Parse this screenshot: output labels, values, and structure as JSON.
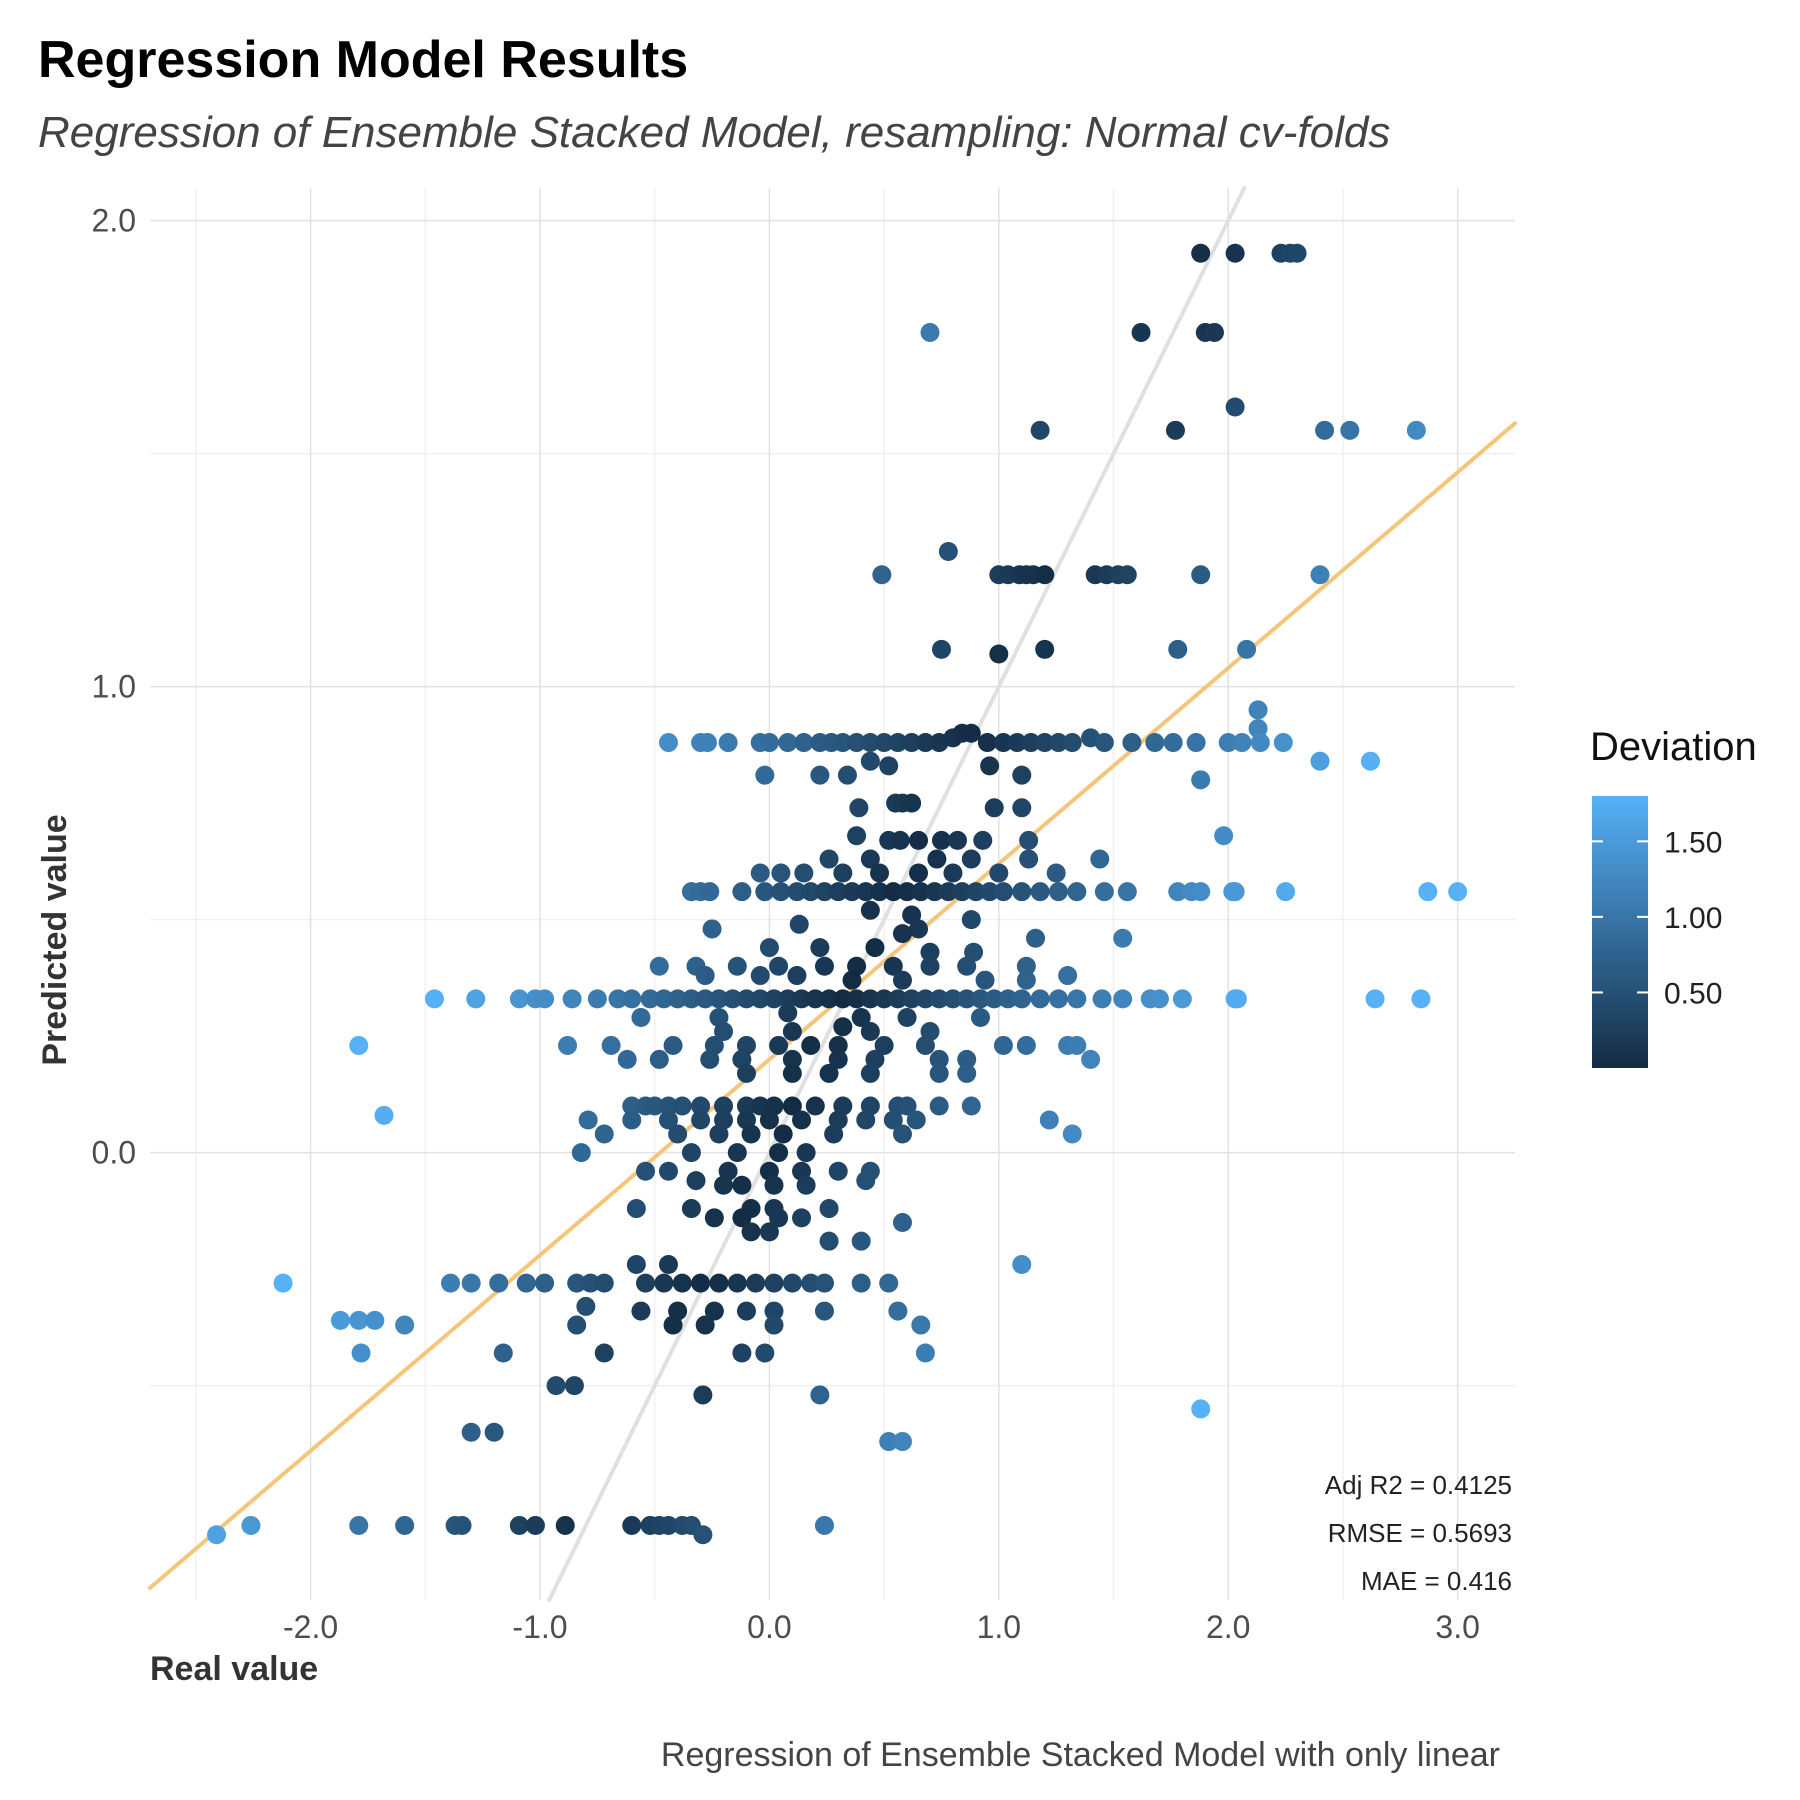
{
  "chart_data": {
    "type": "scatter",
    "title": "Regression Model Results",
    "subtitle": "Regression of Ensemble Stacked Model, resampling: Normal cv-folds",
    "caption": "Regression of Ensemble Stacked Model with only linear",
    "xlabel": "Real value",
    "ylabel": "Predicted value",
    "xlim": [
      -2.7,
      3.25
    ],
    "ylim": [
      -0.96,
      2.07
    ],
    "x_ticks": [
      -2.0,
      -1.0,
      0.0,
      1.0,
      2.0,
      3.0
    ],
    "x_tick_labels": [
      "-2.0",
      "-1.0",
      "0.0",
      "1.0",
      "2.0",
      "3.0"
    ],
    "y_ticks": [
      0.0,
      1.0,
      2.0
    ],
    "y_tick_labels": [
      "0.0",
      "1.0",
      "2.0"
    ],
    "grid": true,
    "legend": {
      "title": "Deviation",
      "position": "right",
      "range": [
        0.0,
        1.8
      ],
      "ticks": [
        0.5,
        1.0,
        1.5
      ],
      "tick_labels": [
        "0.50",
        "1.00",
        "1.50"
      ],
      "low_color": "#132B43",
      "high_color": "#56B1F7"
    },
    "identity_line": {
      "slope": 1,
      "intercept": 0,
      "color": "#e0e0e0"
    },
    "fit_line": {
      "slope": 0.42,
      "intercept": 0.2,
      "color": "#f5c57a"
    },
    "stats": [
      "Adj R2 =  0.4125",
      "RMSE = 0.5693",
      "MAE = 0.416"
    ],
    "points": [
      [
        1.88,
        1.93
      ],
      [
        2.03,
        1.93
      ],
      [
        2.23,
        1.93
      ],
      [
        2.27,
        1.93
      ],
      [
        2.3,
        1.93
      ],
      [
        0.7,
        1.76
      ],
      [
        1.62,
        1.76
      ],
      [
        1.9,
        1.76
      ],
      [
        1.94,
        1.76
      ],
      [
        2.03,
        1.6
      ],
      [
        1.18,
        1.55
      ],
      [
        1.77,
        1.55
      ],
      [
        2.42,
        1.55
      ],
      [
        2.53,
        1.55
      ],
      [
        2.82,
        1.55
      ],
      [
        0.78,
        1.29
      ],
      [
        0.49,
        1.24
      ],
      [
        1.0,
        1.24
      ],
      [
        1.04,
        1.24
      ],
      [
        1.09,
        1.24
      ],
      [
        1.12,
        1.24
      ],
      [
        1.15,
        1.24
      ],
      [
        1.2,
        1.24
      ],
      [
        1.42,
        1.24
      ],
      [
        1.47,
        1.24
      ],
      [
        1.52,
        1.24
      ],
      [
        1.56,
        1.24
      ],
      [
        1.88,
        1.24
      ],
      [
        2.4,
        1.24
      ],
      [
        0.75,
        1.08
      ],
      [
        1.0,
        1.07
      ],
      [
        1.2,
        1.08
      ],
      [
        1.78,
        1.08
      ],
      [
        2.08,
        1.08
      ],
      [
        2.13,
        0.95
      ],
      [
        2.13,
        0.91
      ],
      [
        -0.44,
        0.88
      ],
      [
        -0.3,
        0.88
      ],
      [
        -0.27,
        0.88
      ],
      [
        -0.18,
        0.88
      ],
      [
        -0.04,
        0.88
      ],
      [
        0.0,
        0.88
      ],
      [
        0.08,
        0.88
      ],
      [
        0.15,
        0.88
      ],
      [
        0.22,
        0.88
      ],
      [
        0.27,
        0.88
      ],
      [
        0.32,
        0.88
      ],
      [
        0.38,
        0.88
      ],
      [
        0.44,
        0.88
      ],
      [
        0.5,
        0.88
      ],
      [
        0.56,
        0.88
      ],
      [
        0.62,
        0.88
      ],
      [
        0.68,
        0.88
      ],
      [
        0.74,
        0.88
      ],
      [
        0.8,
        0.89
      ],
      [
        0.84,
        0.9
      ],
      [
        0.88,
        0.9
      ],
      [
        0.95,
        0.88
      ],
      [
        1.02,
        0.88
      ],
      [
        1.08,
        0.88
      ],
      [
        1.14,
        0.88
      ],
      [
        1.2,
        0.88
      ],
      [
        1.26,
        0.88
      ],
      [
        1.32,
        0.88
      ],
      [
        1.4,
        0.89
      ],
      [
        1.46,
        0.88
      ],
      [
        1.58,
        0.88
      ],
      [
        1.68,
        0.88
      ],
      [
        1.76,
        0.88
      ],
      [
        1.86,
        0.88
      ],
      [
        2.0,
        0.88
      ],
      [
        2.06,
        0.88
      ],
      [
        2.14,
        0.88
      ],
      [
        2.24,
        0.88
      ],
      [
        2.4,
        0.84
      ],
      [
        2.62,
        0.84
      ],
      [
        0.44,
        0.84
      ],
      [
        0.52,
        0.83
      ],
      [
        0.96,
        0.83
      ],
      [
        -0.02,
        0.81
      ],
      [
        0.22,
        0.81
      ],
      [
        0.34,
        0.81
      ],
      [
        1.1,
        0.81
      ],
      [
        1.88,
        0.8
      ],
      [
        0.55,
        0.75
      ],
      [
        0.58,
        0.75
      ],
      [
        0.62,
        0.75
      ],
      [
        0.39,
        0.74
      ],
      [
        0.98,
        0.74
      ],
      [
        1.1,
        0.74
      ],
      [
        0.38,
        0.68
      ],
      [
        0.52,
        0.67
      ],
      [
        0.57,
        0.67
      ],
      [
        0.65,
        0.67
      ],
      [
        0.75,
        0.67
      ],
      [
        0.82,
        0.67
      ],
      [
        0.93,
        0.67
      ],
      [
        1.13,
        0.67
      ],
      [
        1.98,
        0.68
      ],
      [
        0.26,
        0.63
      ],
      [
        0.44,
        0.63
      ],
      [
        0.73,
        0.63
      ],
      [
        0.88,
        0.63
      ],
      [
        1.13,
        0.63
      ],
      [
        1.44,
        0.63
      ],
      [
        -0.04,
        0.6
      ],
      [
        0.05,
        0.6
      ],
      [
        0.15,
        0.6
      ],
      [
        0.32,
        0.6
      ],
      [
        0.48,
        0.6
      ],
      [
        0.65,
        0.6
      ],
      [
        0.8,
        0.6
      ],
      [
        1.0,
        0.6
      ],
      [
        1.25,
        0.6
      ],
      [
        -0.34,
        0.56
      ],
      [
        -0.3,
        0.56
      ],
      [
        -0.26,
        0.56
      ],
      [
        -0.12,
        0.56
      ],
      [
        -0.02,
        0.56
      ],
      [
        0.05,
        0.56
      ],
      [
        0.12,
        0.56
      ],
      [
        0.18,
        0.56
      ],
      [
        0.24,
        0.56
      ],
      [
        0.3,
        0.56
      ],
      [
        0.36,
        0.56
      ],
      [
        0.42,
        0.56
      ],
      [
        0.48,
        0.56
      ],
      [
        0.54,
        0.56
      ],
      [
        0.6,
        0.56
      ],
      [
        0.66,
        0.56
      ],
      [
        0.72,
        0.56
      ],
      [
        0.78,
        0.56
      ],
      [
        0.84,
        0.56
      ],
      [
        0.9,
        0.56
      ],
      [
        0.96,
        0.56
      ],
      [
        1.02,
        0.56
      ],
      [
        1.1,
        0.56
      ],
      [
        1.18,
        0.56
      ],
      [
        1.26,
        0.56
      ],
      [
        1.34,
        0.56
      ],
      [
        1.46,
        0.56
      ],
      [
        1.56,
        0.56
      ],
      [
        1.78,
        0.56
      ],
      [
        1.84,
        0.56
      ],
      [
        1.88,
        0.56
      ],
      [
        2.02,
        0.56
      ],
      [
        2.03,
        0.56
      ],
      [
        2.25,
        0.56
      ],
      [
        2.87,
        0.56
      ],
      [
        3.0,
        0.56
      ],
      [
        0.44,
        0.52
      ],
      [
        0.62,
        0.51
      ],
      [
        0.88,
        0.5
      ],
      [
        -0.25,
        0.48
      ],
      [
        0.13,
        0.49
      ],
      [
        0.65,
        0.48
      ],
      [
        0.58,
        0.47
      ],
      [
        1.16,
        0.46
      ],
      [
        1.54,
        0.46
      ],
      [
        0.0,
        0.44
      ],
      [
        0.22,
        0.44
      ],
      [
        0.46,
        0.44
      ],
      [
        0.7,
        0.43
      ],
      [
        0.89,
        0.43
      ],
      [
        -0.48,
        0.4
      ],
      [
        -0.32,
        0.4
      ],
      [
        -0.14,
        0.4
      ],
      [
        0.04,
        0.4
      ],
      [
        0.24,
        0.4
      ],
      [
        0.38,
        0.4
      ],
      [
        0.54,
        0.4
      ],
      [
        0.7,
        0.4
      ],
      [
        0.86,
        0.4
      ],
      [
        1.12,
        0.4
      ],
      [
        -0.28,
        0.38
      ],
      [
        -0.04,
        0.38
      ],
      [
        0.12,
        0.38
      ],
      [
        0.36,
        0.37
      ],
      [
        0.58,
        0.37
      ],
      [
        0.94,
        0.37
      ],
      [
        1.12,
        0.37
      ],
      [
        1.3,
        0.38
      ],
      [
        -1.46,
        0.33
      ],
      [
        -1.28,
        0.33
      ],
      [
        -1.09,
        0.33
      ],
      [
        -1.02,
        0.33
      ],
      [
        -0.98,
        0.33
      ],
      [
        -0.86,
        0.33
      ],
      [
        -0.75,
        0.33
      ],
      [
        -0.66,
        0.33
      ],
      [
        -0.6,
        0.33
      ],
      [
        -0.52,
        0.33
      ],
      [
        -0.46,
        0.33
      ],
      [
        -0.4,
        0.33
      ],
      [
        -0.34,
        0.33
      ],
      [
        -0.28,
        0.33
      ],
      [
        -0.22,
        0.33
      ],
      [
        -0.16,
        0.33
      ],
      [
        -0.1,
        0.33
      ],
      [
        -0.04,
        0.33
      ],
      [
        0.02,
        0.33
      ],
      [
        0.08,
        0.33
      ],
      [
        0.14,
        0.33
      ],
      [
        0.2,
        0.33
      ],
      [
        0.26,
        0.33
      ],
      [
        0.32,
        0.33
      ],
      [
        0.38,
        0.33
      ],
      [
        0.44,
        0.33
      ],
      [
        0.5,
        0.33
      ],
      [
        0.56,
        0.33
      ],
      [
        0.62,
        0.33
      ],
      [
        0.68,
        0.33
      ],
      [
        0.74,
        0.33
      ],
      [
        0.8,
        0.33
      ],
      [
        0.86,
        0.33
      ],
      [
        0.92,
        0.33
      ],
      [
        0.98,
        0.33
      ],
      [
        1.04,
        0.33
      ],
      [
        1.1,
        0.33
      ],
      [
        1.18,
        0.33
      ],
      [
        1.26,
        0.33
      ],
      [
        1.34,
        0.33
      ],
      [
        1.45,
        0.33
      ],
      [
        1.54,
        0.33
      ],
      [
        1.66,
        0.33
      ],
      [
        1.7,
        0.33
      ],
      [
        1.8,
        0.33
      ],
      [
        2.03,
        0.33
      ],
      [
        2.04,
        0.33
      ],
      [
        2.64,
        0.33
      ],
      [
        2.84,
        0.33
      ],
      [
        -0.56,
        0.29
      ],
      [
        -0.22,
        0.29
      ],
      [
        0.08,
        0.3
      ],
      [
        0.4,
        0.29
      ],
      [
        0.6,
        0.29
      ],
      [
        0.92,
        0.29
      ],
      [
        -0.2,
        0.26
      ],
      [
        0.1,
        0.26
      ],
      [
        0.32,
        0.27
      ],
      [
        0.44,
        0.26
      ],
      [
        0.7,
        0.26
      ],
      [
        -1.79,
        0.23
      ],
      [
        -0.88,
        0.23
      ],
      [
        -0.69,
        0.23
      ],
      [
        -0.42,
        0.23
      ],
      [
        -0.24,
        0.23
      ],
      [
        -0.1,
        0.23
      ],
      [
        0.04,
        0.23
      ],
      [
        0.18,
        0.23
      ],
      [
        0.3,
        0.23
      ],
      [
        0.5,
        0.23
      ],
      [
        0.68,
        0.23
      ],
      [
        1.02,
        0.23
      ],
      [
        1.12,
        0.23
      ],
      [
        1.3,
        0.23
      ],
      [
        1.34,
        0.23
      ],
      [
        -0.62,
        0.2
      ],
      [
        -0.48,
        0.2
      ],
      [
        -0.26,
        0.2
      ],
      [
        -0.12,
        0.2
      ],
      [
        0.1,
        0.2
      ],
      [
        0.3,
        0.2
      ],
      [
        0.46,
        0.2
      ],
      [
        0.74,
        0.2
      ],
      [
        0.86,
        0.2
      ],
      [
        1.4,
        0.2
      ],
      [
        -0.1,
        0.17
      ],
      [
        0.1,
        0.17
      ],
      [
        0.26,
        0.17
      ],
      [
        0.44,
        0.17
      ],
      [
        0.74,
        0.17
      ],
      [
        0.86,
        0.17
      ],
      [
        -0.6,
        0.1
      ],
      [
        -0.54,
        0.1
      ],
      [
        -0.5,
        0.1
      ],
      [
        -0.44,
        0.1
      ],
      [
        -0.38,
        0.1
      ],
      [
        -0.3,
        0.1
      ],
      [
        -0.2,
        0.1
      ],
      [
        -0.1,
        0.1
      ],
      [
        -0.04,
        0.1
      ],
      [
        0.02,
        0.1
      ],
      [
        0.1,
        0.1
      ],
      [
        0.2,
        0.1
      ],
      [
        0.32,
        0.1
      ],
      [
        0.44,
        0.1
      ],
      [
        0.56,
        0.1
      ],
      [
        0.6,
        0.1
      ],
      [
        0.74,
        0.1
      ],
      [
        0.88,
        0.1
      ],
      [
        -1.68,
        0.08
      ],
      [
        -0.79,
        0.07
      ],
      [
        -0.6,
        0.07
      ],
      [
        -0.44,
        0.07
      ],
      [
        -0.3,
        0.07
      ],
      [
        -0.2,
        0.07
      ],
      [
        -0.1,
        0.07
      ],
      [
        0.0,
        0.07
      ],
      [
        0.14,
        0.07
      ],
      [
        0.3,
        0.07
      ],
      [
        0.42,
        0.07
      ],
      [
        0.54,
        0.07
      ],
      [
        0.64,
        0.07
      ],
      [
        1.22,
        0.07
      ],
      [
        -0.72,
        0.04
      ],
      [
        -0.4,
        0.04
      ],
      [
        -0.22,
        0.04
      ],
      [
        -0.08,
        0.04
      ],
      [
        0.06,
        0.04
      ],
      [
        0.28,
        0.04
      ],
      [
        0.58,
        0.04
      ],
      [
        1.32,
        0.04
      ],
      [
        -0.82,
        0.0
      ],
      [
        -0.34,
        0.0
      ],
      [
        -0.14,
        0.0
      ],
      [
        0.04,
        0.0
      ],
      [
        0.16,
        0.0
      ],
      [
        -0.54,
        -0.04
      ],
      [
        -0.44,
        -0.04
      ],
      [
        -0.18,
        -0.04
      ],
      [
        0.0,
        -0.04
      ],
      [
        0.14,
        -0.04
      ],
      [
        0.3,
        -0.04
      ],
      [
        0.44,
        -0.04
      ],
      [
        -0.32,
        -0.06
      ],
      [
        -0.2,
        -0.07
      ],
      [
        -0.12,
        -0.07
      ],
      [
        0.02,
        -0.07
      ],
      [
        0.16,
        -0.07
      ],
      [
        0.42,
        -0.06
      ],
      [
        -0.58,
        -0.12
      ],
      [
        -0.34,
        -0.12
      ],
      [
        -0.08,
        -0.12
      ],
      [
        0.02,
        -0.12
      ],
      [
        0.26,
        -0.12
      ],
      [
        -0.24,
        -0.14
      ],
      [
        -0.12,
        -0.14
      ],
      [
        0.04,
        -0.14
      ],
      [
        0.14,
        -0.14
      ],
      [
        0.58,
        -0.15
      ],
      [
        -0.08,
        -0.17
      ],
      [
        0.0,
        -0.17
      ],
      [
        0.26,
        -0.19
      ],
      [
        0.4,
        -0.19
      ],
      [
        -0.58,
        -0.24
      ],
      [
        -0.44,
        -0.24
      ],
      [
        1.1,
        -0.24
      ],
      [
        -1.39,
        -0.28
      ],
      [
        -1.3,
        -0.28
      ],
      [
        -1.18,
        -0.28
      ],
      [
        -1.06,
        -0.28
      ],
      [
        -0.98,
        -0.28
      ],
      [
        -0.84,
        -0.28
      ],
      [
        -0.78,
        -0.28
      ],
      [
        -0.72,
        -0.28
      ],
      [
        -0.54,
        -0.28
      ],
      [
        -0.46,
        -0.28
      ],
      [
        -0.38,
        -0.28
      ],
      [
        -0.3,
        -0.28
      ],
      [
        -0.22,
        -0.28
      ],
      [
        -0.14,
        -0.28
      ],
      [
        -0.06,
        -0.28
      ],
      [
        0.02,
        -0.28
      ],
      [
        0.1,
        -0.28
      ],
      [
        0.18,
        -0.28
      ],
      [
        0.24,
        -0.28
      ],
      [
        0.4,
        -0.28
      ],
      [
        0.52,
        -0.28
      ],
      [
        -2.12,
        -0.28
      ],
      [
        -0.8,
        -0.33
      ],
      [
        -0.56,
        -0.34
      ],
      [
        -0.4,
        -0.34
      ],
      [
        -0.24,
        -0.34
      ],
      [
        -0.1,
        -0.34
      ],
      [
        0.02,
        -0.34
      ],
      [
        0.24,
        -0.34
      ],
      [
        0.56,
        -0.34
      ],
      [
        -0.84,
        -0.37
      ],
      [
        -0.42,
        -0.37
      ],
      [
        -0.28,
        -0.37
      ],
      [
        0.02,
        -0.37
      ],
      [
        0.66,
        -0.37
      ],
      [
        -1.87,
        -0.36
      ],
      [
        -1.79,
        -0.36
      ],
      [
        -1.72,
        -0.36
      ],
      [
        -1.59,
        -0.37
      ],
      [
        -1.16,
        -0.43
      ],
      [
        -0.72,
        -0.43
      ],
      [
        -0.12,
        -0.43
      ],
      [
        -0.02,
        -0.43
      ],
      [
        0.68,
        -0.43
      ],
      [
        -1.78,
        -0.43
      ],
      [
        -0.93,
        -0.5
      ],
      [
        -0.85,
        -0.5
      ],
      [
        -0.29,
        -0.52
      ],
      [
        0.22,
        -0.52
      ],
      [
        1.88,
        -0.55
      ],
      [
        -1.3,
        -0.6
      ],
      [
        -1.2,
        -0.6
      ],
      [
        0.52,
        -0.62
      ],
      [
        0.58,
        -0.62
      ],
      [
        -2.41,
        -0.82
      ],
      [
        -2.26,
        -0.8
      ],
      [
        -1.79,
        -0.8
      ],
      [
        -1.59,
        -0.8
      ],
      [
        -1.37,
        -0.8
      ],
      [
        -1.34,
        -0.8
      ],
      [
        -1.09,
        -0.8
      ],
      [
        -1.02,
        -0.8
      ],
      [
        -0.89,
        -0.8
      ],
      [
        -0.6,
        -0.8
      ],
      [
        -0.52,
        -0.8
      ],
      [
        -0.48,
        -0.8
      ],
      [
        -0.44,
        -0.8
      ],
      [
        -0.38,
        -0.8
      ],
      [
        -0.34,
        -0.8
      ],
      [
        -0.29,
        -0.82
      ],
      [
        0.24,
        -0.8
      ]
    ]
  }
}
